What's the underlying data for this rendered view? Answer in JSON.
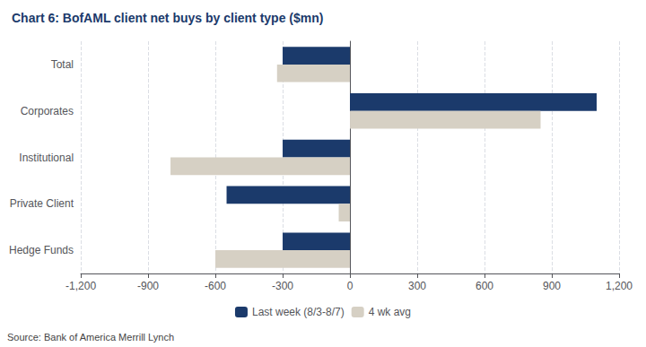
{
  "chart_data": {
    "type": "bar",
    "orientation": "horizontal",
    "title": "Chart 6: BofAML client net buys by client type ($mn)",
    "categories": [
      "Total",
      "Corporates",
      "Institutional",
      "Private Client",
      "Hedge Funds"
    ],
    "series": [
      {
        "name": "Last week (8/3-8/7)",
        "color": "#1b3a6b",
        "values": [
          -300,
          1100,
          -300,
          -550,
          -300
        ]
      },
      {
        "name": "4 wk avg",
        "color": "#d6d0c4",
        "values": [
          -325,
          850,
          -800,
          -50,
          -600
        ]
      }
    ],
    "xlim": [
      -1200,
      1200
    ],
    "xticks": [
      {
        "value": -1200,
        "label": "-1,200"
      },
      -900,
      -600,
      -300,
      0,
      300,
      600,
      900,
      {
        "value": 1200,
        "label": "1,200"
      }
    ],
    "grid": true,
    "legend": "bottom",
    "annotations": [
      "Source: Bank of America Merrill Lynch"
    ]
  }
}
